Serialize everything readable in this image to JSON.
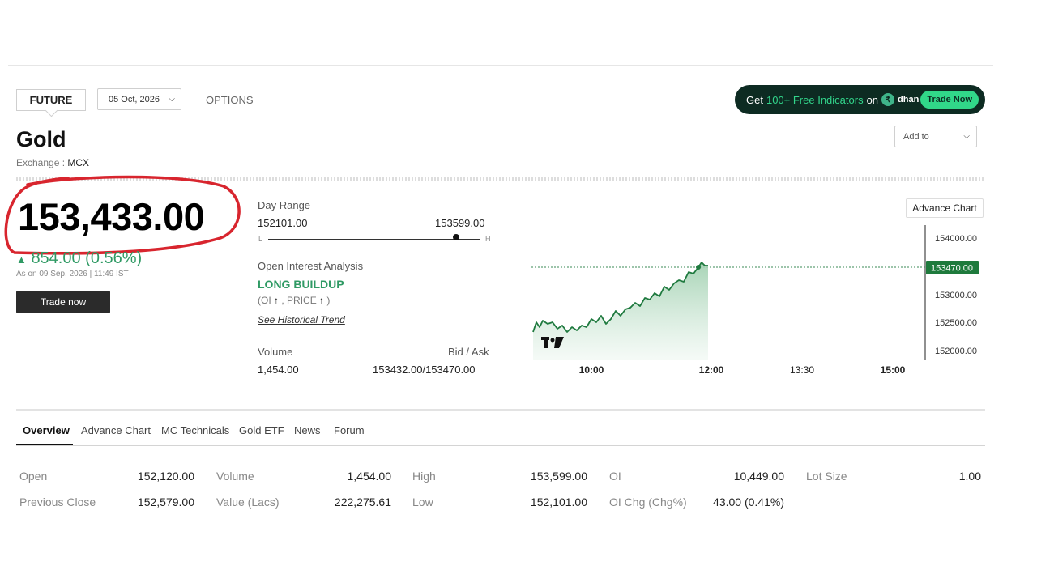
{
  "contract_tabs": {
    "future": "FUTURE",
    "options": "OPTIONS"
  },
  "expiry": {
    "selected": "05 Oct, 2026"
  },
  "promo": {
    "prefix": "Get",
    "highlight": "100+ Free Indicators",
    "suffix": "on",
    "brand": "dhan",
    "cta": "Trade Now"
  },
  "instrument": {
    "name": "Gold",
    "exchange_label": "Exchange :",
    "exchange": "MCX"
  },
  "watchlist": {
    "label": "Add to"
  },
  "quote": {
    "price": "153,433.00",
    "change": "854.00 (0.56%)",
    "as_of": "As on 09 Sep, 2026 | 11:49 IST",
    "trade_button": "Trade now"
  },
  "day_range": {
    "label": "Day Range",
    "low": "152101.00",
    "high": "153599.00",
    "low_marker": "L",
    "high_marker": "H",
    "current_fraction": 0.89
  },
  "oi_analysis": {
    "label": "Open Interest Analysis",
    "signal": "LONG BUILDUP",
    "note_oi": "(OI",
    "note_price": ", PRICE",
    "note_end": ")",
    "link": "See Historical Trend"
  },
  "volume": {
    "label": "Volume",
    "value": "1,454.00"
  },
  "bid_ask": {
    "label": "Bid / Ask",
    "value": "153432.00/153470.00"
  },
  "chart": {
    "button": "Advance Chart",
    "last_price_label": "153470.00",
    "y_ticks": [
      "154000.00",
      "153000.00",
      "152500.00",
      "152000.00"
    ],
    "x_ticks": [
      "10:00",
      "12:00",
      "13:30",
      "15:00"
    ],
    "colors": {
      "line": "#1f7a3f",
      "fill": "#cfe6d6",
      "last_badge": "#1e7a3c"
    }
  },
  "tabs": [
    "Overview",
    "Advance Chart",
    "MC Technicals",
    "Gold ETF",
    "News",
    "Forum"
  ],
  "overview": {
    "col1": [
      {
        "label": "Open",
        "value": "152,120.00"
      },
      {
        "label": "Previous Close",
        "value": "152,579.00"
      }
    ],
    "col2": [
      {
        "label": "Volume",
        "value": "1,454.00"
      },
      {
        "label": "Value (Lacs)",
        "value": "222,275.61"
      }
    ],
    "col3": [
      {
        "label": "High",
        "value": "153,599.00"
      },
      {
        "label": "Low",
        "value": "152,101.00"
      }
    ],
    "col4": [
      {
        "label": "OI",
        "value": "10,449.00"
      },
      {
        "label": "OI Chg (Chg%)",
        "value": "43.00 (0.41%)"
      }
    ],
    "col5": [
      {
        "label": "Lot Size",
        "value": "1.00"
      }
    ]
  },
  "accent": {
    "green": "#2f9a64",
    "dark": "#0d2b22",
    "annotation_red": "#d8252e"
  }
}
